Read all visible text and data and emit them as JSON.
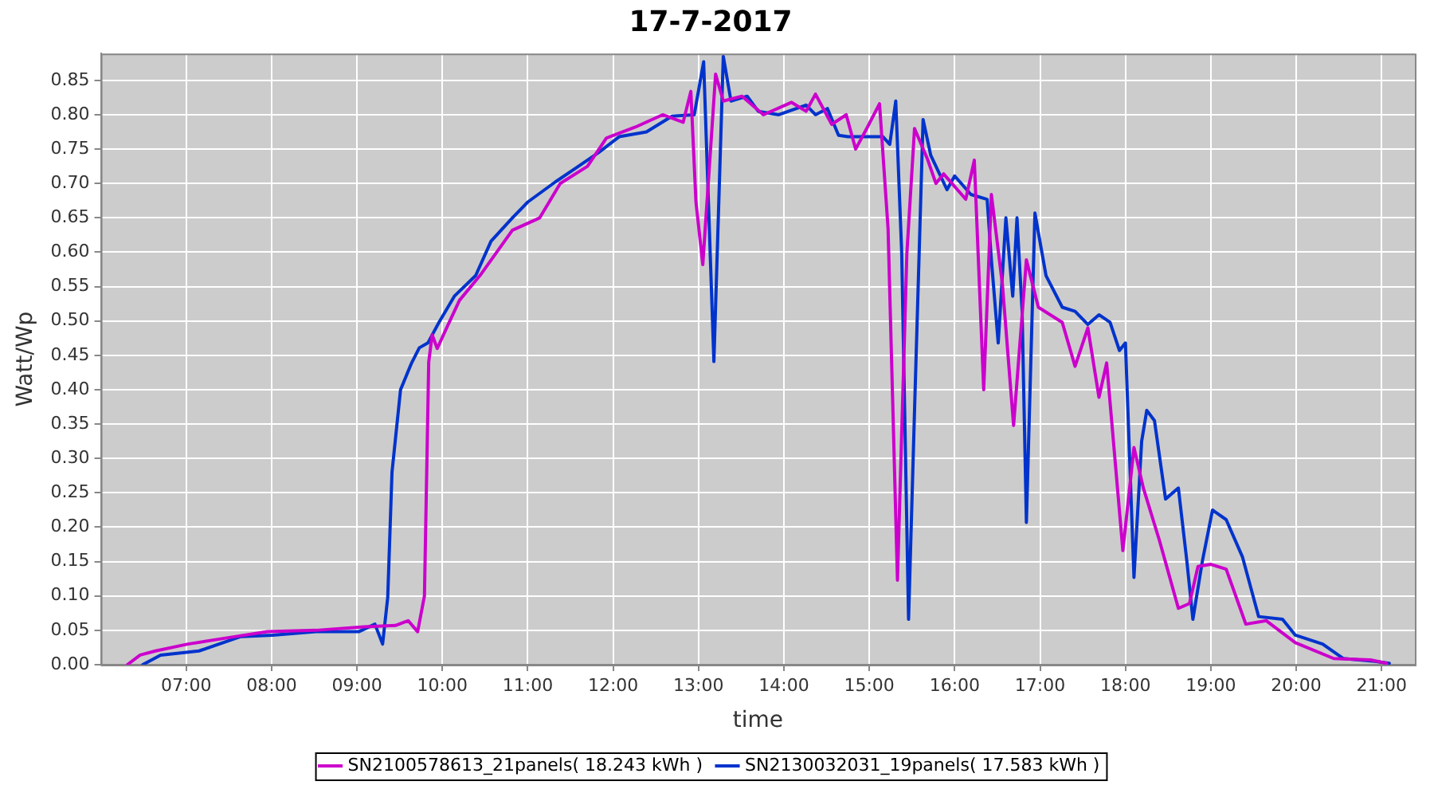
{
  "chart_data": {
    "type": "line",
    "title": "17-7-2017",
    "xlabel": "time",
    "ylabel": "Watt/Wp",
    "xlim": [
      6.0,
      21.39
    ],
    "ylim": [
      0,
      0.889
    ],
    "xticks": [
      {
        "value": 7,
        "label": "07:00"
      },
      {
        "value": 8,
        "label": "08:00"
      },
      {
        "value": 9,
        "label": "09:00"
      },
      {
        "value": 10,
        "label": "10:00"
      },
      {
        "value": 11,
        "label": "11:00"
      },
      {
        "value": 12,
        "label": "12:00"
      },
      {
        "value": 13,
        "label": "13:00"
      },
      {
        "value": 14,
        "label": "14:00"
      },
      {
        "value": 15,
        "label": "15:00"
      },
      {
        "value": 16,
        "label": "16:00"
      },
      {
        "value": 17,
        "label": "17:00"
      },
      {
        "value": 18,
        "label": "18:00"
      },
      {
        "value": 19,
        "label": "19:00"
      },
      {
        "value": 20,
        "label": "20:00"
      },
      {
        "value": 21,
        "label": "21:00"
      }
    ],
    "yticks": [
      {
        "value": 0,
        "label": "0.00"
      },
      0.05,
      {
        "value": 0.1,
        "label": "0.10"
      },
      0.15,
      {
        "value": 0.2,
        "label": "0.20"
      },
      0.25,
      {
        "value": 0.3,
        "label": "0.30"
      },
      0.35,
      {
        "value": 0.4,
        "label": "0.40"
      },
      0.45,
      {
        "value": 0.5,
        "label": "0.50"
      },
      0.55,
      {
        "value": 0.6,
        "label": "0.60"
      },
      0.65,
      {
        "value": 0.7,
        "label": "0.70"
      },
      0.75,
      {
        "value": 0.8,
        "label": "0.80"
      },
      0.85
    ],
    "grid": true,
    "legend": "bottom",
    "marker": "none",
    "line_style": "solid",
    "series": [
      {
        "name": "SN2100578613_21panels( 18.243 kWh )",
        "color": "#cc00cc",
        "x": [
          6.31,
          6.46,
          6.64,
          7.02,
          7.58,
          7.95,
          8.52,
          9.08,
          9.45,
          9.6,
          9.71,
          9.79,
          9.84,
          9.88,
          9.94,
          10.05,
          10.2,
          10.44,
          10.82,
          11.14,
          11.38,
          11.7,
          11.92,
          12.26,
          12.58,
          12.82,
          12.91,
          12.97,
          13.05,
          13.2,
          13.29,
          13.51,
          13.76,
          14.09,
          14.26,
          14.37,
          14.56,
          14.73,
          14.84,
          14.97,
          15.12,
          15.22,
          15.33,
          15.44,
          15.53,
          15.68,
          15.78,
          15.87,
          16.13,
          16.23,
          16.34,
          16.43,
          16.56,
          16.69,
          16.84,
          16.98,
          17.26,
          17.41,
          17.56,
          17.69,
          17.78,
          17.97,
          18.1,
          18.21,
          18.4,
          18.62,
          18.75,
          18.85,
          19.0,
          19.18,
          19.41,
          19.65,
          19.99,
          20.44,
          20.87,
          21.06
        ],
        "values": [
          0,
          0.014,
          0.02,
          0.03,
          0.041,
          0.048,
          0.05,
          0.055,
          0.057,
          0.064,
          0.048,
          0.1,
          0.44,
          0.48,
          0.46,
          0.49,
          0.53,
          0.566,
          0.632,
          0.65,
          0.7,
          0.725,
          0.766,
          0.782,
          0.8,
          0.789,
          0.834,
          0.673,
          0.582,
          0.859,
          0.82,
          0.827,
          0.8,
          0.818,
          0.805,
          0.83,
          0.786,
          0.8,
          0.75,
          0.78,
          0.816,
          0.634,
          0.123,
          0.598,
          0.78,
          0.736,
          0.7,
          0.714,
          0.677,
          0.734,
          0.4,
          0.684,
          0.552,
          0.348,
          0.589,
          0.52,
          0.498,
          0.434,
          0.49,
          0.389,
          0.439,
          0.166,
          0.316,
          0.257,
          0.18,
          0.082,
          0.089,
          0.143,
          0.146,
          0.139,
          0.059,
          0.064,
          0.032,
          0.009,
          0.007,
          0.002
        ]
      },
      {
        "name": "SN2130032031_19panels( 17.583 kWh )",
        "color": "#0033cc",
        "x": [
          6.49,
          6.7,
          7.15,
          7.64,
          8.01,
          8.52,
          9.02,
          9.21,
          9.3,
          9.36,
          9.41,
          9.51,
          9.64,
          9.73,
          9.83,
          9.96,
          10.14,
          10.39,
          10.57,
          10.82,
          11.0,
          11.32,
          11.57,
          11.83,
          12.07,
          12.39,
          12.69,
          12.95,
          13.06,
          13.18,
          13.29,
          13.38,
          13.57,
          13.7,
          13.94,
          14.26,
          14.37,
          14.51,
          14.64,
          14.75,
          14.94,
          15.16,
          15.24,
          15.31,
          15.38,
          15.46,
          15.53,
          15.63,
          15.72,
          15.91,
          16.0,
          16.19,
          16.38,
          16.43,
          16.51,
          16.6,
          16.68,
          16.73,
          16.79,
          16.84,
          16.94,
          17.07,
          17.26,
          17.41,
          17.56,
          17.69,
          17.82,
          17.93,
          18.0,
          18.1,
          18.19,
          18.25,
          18.34,
          18.47,
          18.62,
          18.72,
          18.79,
          18.9,
          19.02,
          19.18,
          19.37,
          19.56,
          19.84,
          19.99,
          20.31,
          20.55,
          20.92,
          21.09
        ],
        "values": [
          0,
          0.014,
          0.02,
          0.041,
          0.043,
          0.048,
          0.048,
          0.059,
          0.03,
          0.098,
          0.28,
          0.4,
          0.439,
          0.461,
          0.468,
          0.498,
          0.536,
          0.566,
          0.616,
          0.65,
          0.673,
          0.702,
          0.723,
          0.745,
          0.768,
          0.775,
          0.798,
          0.8,
          0.877,
          0.441,
          0.885,
          0.82,
          0.827,
          0.805,
          0.8,
          0.814,
          0.8,
          0.809,
          0.77,
          0.768,
          0.768,
          0.768,
          0.757,
          0.82,
          0.598,
          0.066,
          0.37,
          0.793,
          0.741,
          0.691,
          0.711,
          0.684,
          0.677,
          0.589,
          0.468,
          0.65,
          0.536,
          0.65,
          0.514,
          0.207,
          0.657,
          0.566,
          0.52,
          0.514,
          0.495,
          0.509,
          0.498,
          0.457,
          0.468,
          0.127,
          0.325,
          0.37,
          0.355,
          0.241,
          0.257,
          0.15,
          0.066,
          0.15,
          0.225,
          0.211,
          0.157,
          0.07,
          0.066,
          0.043,
          0.03,
          0.009,
          0.005,
          0.002
        ]
      }
    ]
  }
}
